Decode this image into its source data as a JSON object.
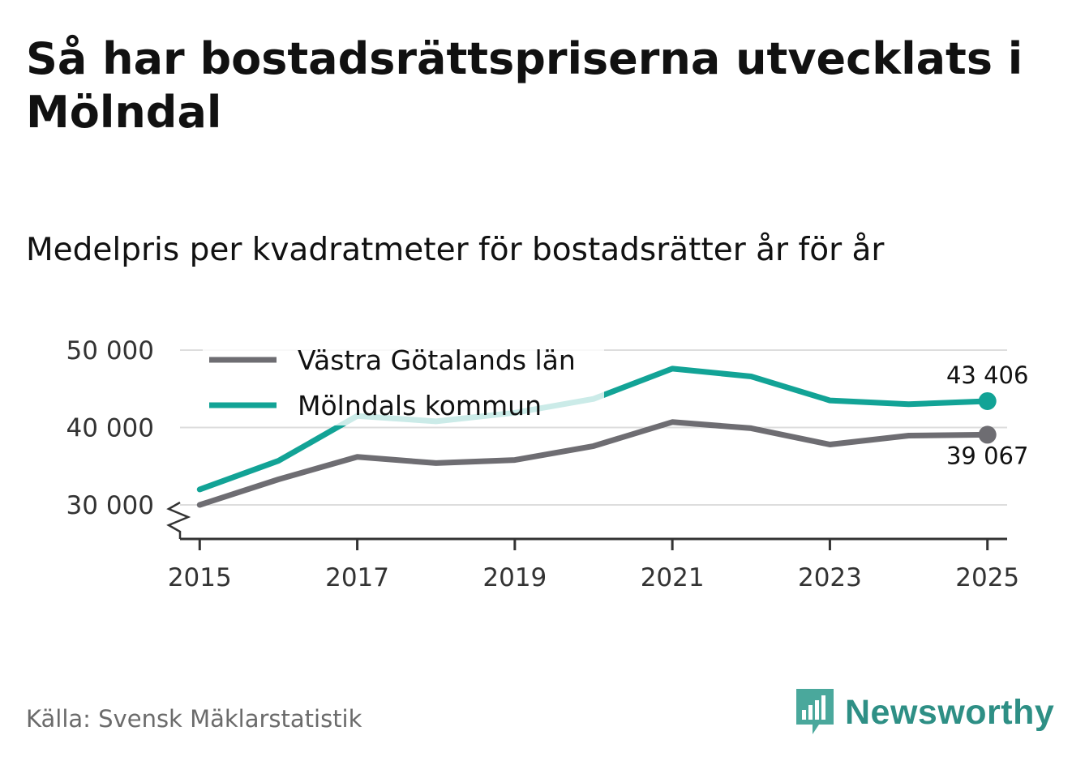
{
  "title": "Så har bostadsrättspriserna utvecklats i Mölndal",
  "subtitle": "Medelpris per kvadratmeter för bostadsrätter år för år",
  "source": "Källa: Svensk Mäklarstatistik",
  "brand": "Newsworthy",
  "colors": {
    "vastra": "#6e6d72",
    "molndal": "#12a396",
    "grid": "#dddddd",
    "axis": "#333333",
    "brand": "#2e8f85"
  },
  "chart_data": {
    "type": "line",
    "title": "Medelpris per kvadratmeter för bostadsrätter år för år",
    "xlabel": "",
    "ylabel": "",
    "x": [
      2015,
      2016,
      2017,
      2018,
      2019,
      2020,
      2021,
      2022,
      2023,
      2024,
      2025
    ],
    "xlim": [
      2014.75,
      2025.25
    ],
    "ylim": [
      25600,
      50000
    ],
    "y_ticks": [
      30000,
      40000,
      50000
    ],
    "y_tick_labels": [
      "30 000",
      "40 000",
      "50 000"
    ],
    "x_ticks": [
      2015,
      2017,
      2019,
      2021,
      2023,
      2025
    ],
    "x_tick_labels": [
      "2015",
      "2017",
      "2019",
      "2021",
      "2023",
      "2025"
    ],
    "grid": true,
    "legend_position": "top-left",
    "series": [
      {
        "name": "Västra Götalands län",
        "values": [
          30000,
          33300,
          36200,
          35400,
          35800,
          37600,
          40700,
          39900,
          37800,
          38950,
          39067
        ],
        "end_label": "39 067"
      },
      {
        "name": "Mölndals kommun",
        "values": [
          32000,
          35700,
          41500,
          40800,
          41900,
          43700,
          47600,
          46600,
          43500,
          43000,
          43406
        ],
        "end_label": "43 406"
      }
    ]
  }
}
